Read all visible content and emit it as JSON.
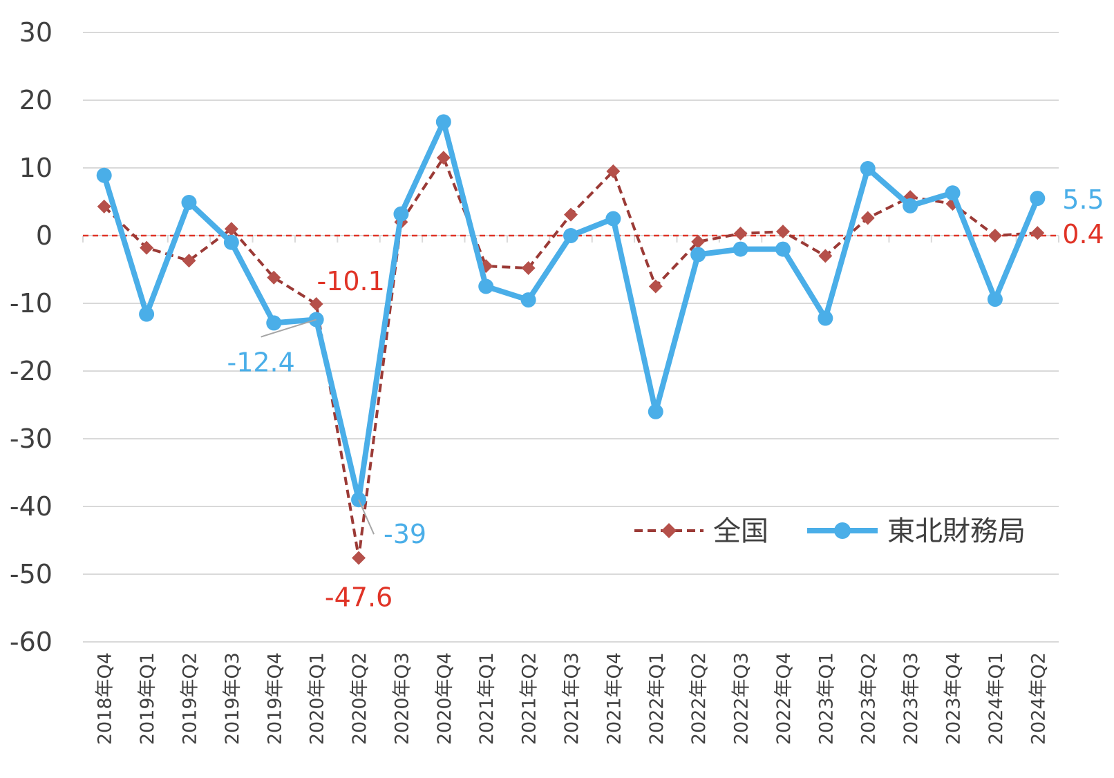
{
  "chart_data": {
    "type": "line",
    "categories": [
      "2018年Q4",
      "2019年Q1",
      "2019年Q2",
      "2019年Q3",
      "2019年Q4",
      "2020年Q1",
      "2020年Q2",
      "2020年Q3",
      "2020年Q4",
      "2021年Q1",
      "2021年Q2",
      "2021年Q3",
      "2021年Q4",
      "2022年Q1",
      "2022年Q2",
      "2022年Q3",
      "2022年Q4",
      "2023年Q1",
      "2023年Q2",
      "2023年Q3",
      "2023年Q4",
      "2024年Q1",
      "2024年Q2"
    ],
    "series": [
      {
        "name": "全国",
        "color": "#b5504a",
        "style": "dashed",
        "marker": "diamond",
        "values": [
          4.3,
          -1.8,
          -3.7,
          1.0,
          -6.2,
          -10.1,
          -47.6,
          2.0,
          11.5,
          -4.5,
          -4.8,
          3.1,
          9.5,
          -7.5,
          -0.9,
          0.3,
          0.6,
          -3.0,
          2.6,
          5.7,
          4.7,
          0.0,
          0.4
        ]
      },
      {
        "name": "東北財務局",
        "color": "#4aaee8",
        "style": "solid",
        "marker": "circle",
        "values": [
          8.9,
          -11.6,
          4.9,
          -1.0,
          -12.9,
          -12.4,
          -39.0,
          3.2,
          16.8,
          -7.5,
          -9.5,
          0.0,
          2.5,
          -26.0,
          -2.8,
          -2.0,
          -2.0,
          -12.2,
          9.9,
          4.4,
          6.3,
          -9.4,
          5.5
        ]
      }
    ],
    "ylim": [
      -60,
      30
    ],
    "yticks": [
      30,
      20,
      10,
      0,
      -10,
      -20,
      -30,
      -40,
      -50,
      -60
    ],
    "grid": true,
    "zero_line_color": "#e03326",
    "legend_position": "lower-right",
    "data_labels": [
      {
        "series": "全国",
        "index": 5,
        "text": "-10.1",
        "color": "#e03326"
      },
      {
        "series": "全国",
        "index": 6,
        "text": "-47.6",
        "color": "#e03326"
      },
      {
        "series": "全国",
        "index": 22,
        "text": "0.4",
        "color": "#e03326"
      },
      {
        "series": "東北財務局",
        "index": 5,
        "text": "-12.4",
        "color": "#4aaee8"
      },
      {
        "series": "東北財務局",
        "index": 6,
        "text": "-39",
        "color": "#4aaee8"
      },
      {
        "series": "東北財務局",
        "index": 22,
        "text": "5.5",
        "color": "#4aaee8"
      }
    ]
  }
}
